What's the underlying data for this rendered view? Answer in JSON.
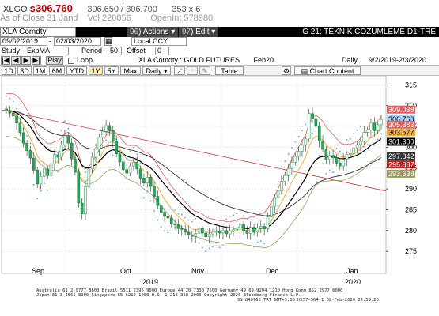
{
  "header": {
    "symbol": "XLGO",
    "price": "s306.760",
    "quote": "306.650 / 306.700",
    "size": "353 x 6",
    "as_of": "As of Close 31 Jand",
    "vol_label": "Vol",
    "vol": "220056",
    "openint_label": "OpenInt",
    "openint": "578980"
  },
  "titlebar": {
    "security": "XLA Comdty",
    "actions_num": "96",
    "actions": "Actions",
    "edit_num": "97",
    "edit": "Edit",
    "title": "G 21: TEKNIK COZUMLEME D1-TRE"
  },
  "controls": {
    "start_date": "09/02/2019",
    "end_date": "02/03/2020",
    "currency": "Local CCY",
    "study_label": "Study",
    "study": "ExpMA",
    "period_label": "Period",
    "period": "50",
    "offset_label": "Offset",
    "offset": "0",
    "play": "Play",
    "loop": "Loop",
    "chart_name": "XLA Comdty : GOLD FUTURES",
    "contract": "Feb20",
    "daily_label": "Daily",
    "range": "9/2/2019-2/3/2020"
  },
  "tabs": {
    "periods": [
      "1D",
      "3D",
      "1M",
      "6M",
      "YTD",
      "1Y",
      "5Y",
      "Max"
    ],
    "selected": "1Y",
    "interval": "Daily",
    "table": "Table",
    "chart_content": "Chart Content"
  },
  "axis": {
    "y_ticks": [
      "315",
      "310",
      "305",
      "300",
      "295",
      "290",
      "285",
      "280",
      "275"
    ],
    "x_months": [
      "Sep",
      "Oct",
      "Nov",
      "Dec",
      "Jan"
    ],
    "x_years": [
      "2019",
      "2020"
    ]
  },
  "labels": {
    "l1": "309.038",
    "l2": "306.760",
    "l3": "305.383",
    "l4": "303.577",
    "l5": "301.300",
    "l6": "297.842",
    "l7": "295.887",
    "l8": "293.638"
  },
  "colors": {
    "l1": "#ffffff",
    "l1_bg": "#e06060",
    "l2": "#000000",
    "l2_bg": "#a8d0ff",
    "l3": "#ffffff",
    "l3_bg": "#e06060",
    "l4": "#000000",
    "l4_bg": "#f0b040",
    "l5": "#ffffff",
    "l5_bg": "#000000",
    "l6": "#ffffff",
    "l6_bg": "#333333",
    "l7": "#ffffff",
    "l7_bg": "#c02020",
    "l8": "#ffffff",
    "l8_bg": "#9a9a60"
  },
  "footer": {
    "line1": "Australia 61 2 9777 8600 Brazil 5511 2395 9000 Europe 44 20 7330 7500 Germany 49 69 9204 1210 Hong Kong 852 2977 6000",
    "line2": "Japan 81 3 4565 8900     Singapore 65 6212 1000     U.S. 1 212 318 2000     Copyright 2020 Bloomberg Finance L.P.",
    "line3": "SN 840768 TRT  GMT+3:00 H257-564-1 02-Feb-2020 22:59:28"
  },
  "chart_data": {
    "type": "line",
    "title": "XLA Comdty : GOLD FUTURES",
    "ylim": [
      272,
      316
    ],
    "days": 110,
    "close": [
      308.8,
      308.2,
      307.5,
      305.8,
      303.5,
      301.0,
      299.2,
      297.4,
      294.5,
      291.2,
      293.0,
      294.8,
      293.2,
      296.0,
      298.2,
      297.6,
      300.5,
      302.8,
      301.0,
      297.2,
      294.0,
      286.6,
      284.0,
      290.5,
      294.8,
      297.6,
      299.5,
      302.4,
      303.8,
      305.2,
      304.0,
      301.5,
      298.4,
      296.5,
      294.6,
      293.8,
      295.5,
      296.4,
      294.8,
      292.6,
      291.4,
      292.8,
      290.6,
      288.2,
      286.0,
      284.4,
      283.4,
      283.0,
      281.6,
      281.4,
      280.5,
      280.3,
      279.6,
      279.0,
      278.6,
      279.3,
      280.5,
      279.4,
      278.5,
      279.2,
      279.6,
      279.8,
      279.4,
      280.0,
      279.2,
      279.9,
      280.2,
      280.6,
      281.5,
      280.0,
      279.3,
      280.8,
      279.6,
      280.7,
      281.0,
      280.4,
      283.3,
      285.8,
      287.9,
      289.5,
      291.8,
      293.2,
      294.9,
      296.4,
      297.8,
      299.0,
      300.5,
      302.0,
      308.1,
      306.9,
      305.0,
      301.5,
      299.5,
      297.1,
      298.0,
      297.5,
      296.2,
      295.5,
      297.1,
      298.3,
      298.5,
      299.8,
      300.6,
      301.4,
      303.6,
      304.1,
      305.8,
      304.0,
      305.4,
      306.7
    ],
    "series": [
      {
        "values": [
          308.5,
          307.5,
          305.0,
          302.0,
          299.5,
          296.0,
          294.5,
          293.0,
          294.5,
          296.5,
          298.5,
          299.5,
          298.0,
          296.0,
          294.5,
          294.0,
          296.0,
          297.5,
          298.0,
          297.5,
          296.5,
          295.5,
          294.5,
          292.5,
          290.0,
          287.5,
          285.0,
          283.5,
          282.0,
          281.0,
          280.5,
          280.0,
          279.5,
          279.0,
          278.5,
          278.2,
          278.0,
          278.0,
          278.3,
          278.8,
          279.5,
          280.0,
          280.2,
          280.3,
          280.5,
          281.0,
          282.5,
          285.0,
          288.0,
          292.0,
          296.0,
          299.0,
          301.5,
          302.0,
          301.5,
          300.5,
          299.0,
          297.5,
          296.5,
          296.8,
          297.5,
          298.5,
          299.5,
          300.5,
          301.5,
          302.5,
          303.5,
          304.5,
          305.0,
          305.3
        ]
      },
      {
        "values": [
          300.0,
          301.8,
          302.5,
          302.5,
          302.0,
          301.3,
          300.5,
          299.7,
          298.8,
          297.8,
          296.6,
          295.3,
          293.8,
          292.3,
          290.8,
          289.4,
          288.2,
          287.2,
          286.5,
          286.3,
          286.5,
          287.3,
          288.7,
          290.3,
          291.8,
          292.9,
          293.9,
          294.7,
          295.4,
          296.1
        ]
      },
      {
        "values": [
          297.8,
          297.8,
          297.6,
          297.2,
          296.5,
          295.6,
          294.5,
          293.5,
          292.5,
          291.6,
          291.0,
          290.5,
          290.3,
          290.4,
          290.8,
          291.5,
          292.4,
          293.2,
          293.8,
          294.3
        ]
      }
    ],
    "lines": {
      "upper_band": "#e06060",
      "ema_fast": "#f0b040",
      "ema_slow": "#000000",
      "ema_long": "#333333",
      "trend": "#c02020",
      "lower_band": "#9a9a60",
      "parabolic": "#4aa0ff"
    }
  }
}
